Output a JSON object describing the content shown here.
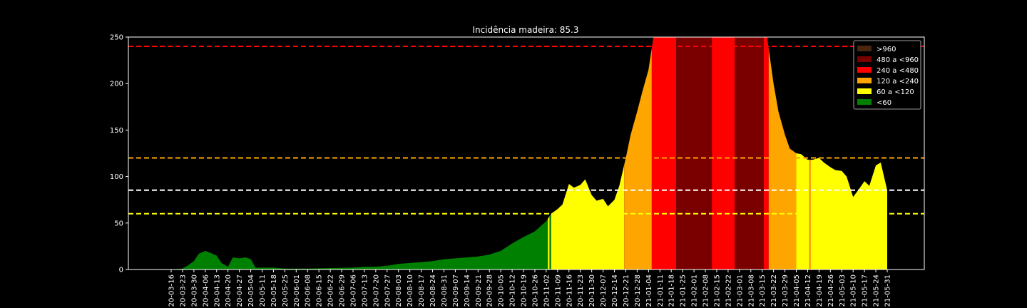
{
  "chart_data": {
    "type": "area",
    "title": "Incidência madeira: 85.3",
    "xlabel": "",
    "ylabel": "",
    "ylim": [
      0,
      250
    ],
    "y_ticks": [
      0,
      50,
      100,
      150,
      200,
      250
    ],
    "grid": false,
    "x_tick_labels": [
      "20-03-16",
      "20-03-23",
      "20-03-30",
      "20-04-06",
      "20-04-13",
      "20-04-20",
      "20-04-27",
      "20-05-04",
      "20-05-11",
      "20-05-18",
      "20-05-25",
      "20-06-01",
      "20-06-08",
      "20-06-15",
      "20-06-22",
      "20-06-29",
      "20-07-06",
      "20-07-13",
      "20-07-20",
      "20-07-27",
      "20-08-03",
      "20-08-10",
      "20-08-17",
      "20-08-24",
      "20-08-31",
      "20-09-07",
      "20-09-14",
      "20-09-21",
      "20-09-28",
      "20-10-05",
      "20-10-12",
      "20-10-19",
      "20-10-26",
      "20-11-02",
      "20-11-09",
      "20-11-16",
      "20-11-23",
      "20-11-30",
      "20-12-07",
      "20-12-14",
      "20-12-21",
      "20-12-28",
      "21-01-04",
      "21-01-11",
      "21-01-18",
      "21-01-25",
      "21-02-01",
      "21-02-08",
      "21-02-15",
      "21-02-22",
      "21-03-01",
      "21-03-08",
      "21-03-15",
      "21-03-22",
      "21-03-29",
      "21-04-05",
      "21-04-12",
      "21-04-19",
      "21-04-26",
      "21-05-03",
      "21-05-10",
      "21-05-17",
      "21-05-24",
      "21-05-31"
    ],
    "x_start": "2020-03-16",
    "incidence_series": [
      {
        "date": "2020-03-16",
        "value": 0
      },
      {
        "date": "2020-03-19",
        "value": 0.5
      },
      {
        "date": "2020-03-23",
        "value": 1
      },
      {
        "date": "2020-03-26",
        "value": 4
      },
      {
        "date": "2020-03-30",
        "value": 9
      },
      {
        "date": "2020-04-02",
        "value": 17
      },
      {
        "date": "2020-04-06",
        "value": 20
      },
      {
        "date": "2020-04-09",
        "value": 18
      },
      {
        "date": "2020-04-13",
        "value": 15
      },
      {
        "date": "2020-04-16",
        "value": 7
      },
      {
        "date": "2020-04-20",
        "value": 3
      },
      {
        "date": "2020-04-23",
        "value": 13
      },
      {
        "date": "2020-04-27",
        "value": 12
      },
      {
        "date": "2020-05-01",
        "value": 13
      },
      {
        "date": "2020-05-04",
        "value": 11
      },
      {
        "date": "2020-05-07",
        "value": 2
      },
      {
        "date": "2020-05-11",
        "value": 2
      },
      {
        "date": "2020-05-18",
        "value": 2
      },
      {
        "date": "2020-05-25",
        "value": 1
      },
      {
        "date": "2020-06-08",
        "value": 1
      },
      {
        "date": "2020-06-22",
        "value": 1.5
      },
      {
        "date": "2020-07-06",
        "value": 2
      },
      {
        "date": "2020-07-13",
        "value": 3
      },
      {
        "date": "2020-07-20",
        "value": 3
      },
      {
        "date": "2020-07-27",
        "value": 4
      },
      {
        "date": "2020-08-03",
        "value": 6
      },
      {
        "date": "2020-08-10",
        "value": 7
      },
      {
        "date": "2020-08-17",
        "value": 8
      },
      {
        "date": "2020-08-24",
        "value": 9
      },
      {
        "date": "2020-08-31",
        "value": 11
      },
      {
        "date": "2020-09-07",
        "value": 12
      },
      {
        "date": "2020-09-14",
        "value": 13
      },
      {
        "date": "2020-09-21",
        "value": 14
      },
      {
        "date": "2020-09-28",
        "value": 16
      },
      {
        "date": "2020-10-05",
        "value": 20
      },
      {
        "date": "2020-10-12",
        "value": 28
      },
      {
        "date": "2020-10-19",
        "value": 35
      },
      {
        "date": "2020-10-26",
        "value": 41
      },
      {
        "date": "2020-11-02",
        "value": 52
      },
      {
        "date": "2020-11-05",
        "value": 60
      },
      {
        "date": "2020-11-09",
        "value": 65
      },
      {
        "date": "2020-11-12",
        "value": 70
      },
      {
        "date": "2020-11-16",
        "value": 92
      },
      {
        "date": "2020-11-19",
        "value": 88
      },
      {
        "date": "2020-11-23",
        "value": 91
      },
      {
        "date": "2020-11-26",
        "value": 97
      },
      {
        "date": "2020-11-30",
        "value": 80
      },
      {
        "date": "2020-12-03",
        "value": 74
      },
      {
        "date": "2020-12-07",
        "value": 76
      },
      {
        "date": "2020-12-10",
        "value": 68
      },
      {
        "date": "2020-12-14",
        "value": 75
      },
      {
        "date": "2020-12-17",
        "value": 90
      },
      {
        "date": "2020-12-21",
        "value": 120
      },
      {
        "date": "2020-12-24",
        "value": 145
      },
      {
        "date": "2020-12-28",
        "value": 170
      },
      {
        "date": "2020-12-31",
        "value": 190
      },
      {
        "date": "2021-01-04",
        "value": 215
      },
      {
        "date": "2021-01-07",
        "value": 250
      },
      {
        "date": "2021-01-11",
        "value": 250
      },
      {
        "date": "2021-03-18",
        "value": 250
      },
      {
        "date": "2021-03-22",
        "value": 200
      },
      {
        "date": "2021-03-25",
        "value": 170
      },
      {
        "date": "2021-03-29",
        "value": 145
      },
      {
        "date": "2021-04-01",
        "value": 130
      },
      {
        "date": "2021-04-05",
        "value": 125
      },
      {
        "date": "2021-04-08",
        "value": 124
      },
      {
        "date": "2021-04-12",
        "value": 118
      },
      {
        "date": "2021-04-15",
        "value": 118
      },
      {
        "date": "2021-04-19",
        "value": 120
      },
      {
        "date": "2021-04-22",
        "value": 115
      },
      {
        "date": "2021-04-26",
        "value": 110
      },
      {
        "date": "2021-04-29",
        "value": 107
      },
      {
        "date": "2021-05-03",
        "value": 106
      },
      {
        "date": "2021-05-06",
        "value": 100
      },
      {
        "date": "2021-05-10",
        "value": 78
      },
      {
        "date": "2021-05-13",
        "value": 85
      },
      {
        "date": "2021-05-17",
        "value": 95
      },
      {
        "date": "2021-05-20",
        "value": 90
      },
      {
        "date": "2021-05-24",
        "value": 112
      },
      {
        "date": "2021-05-27",
        "value": 115
      },
      {
        "date": "2021-05-31",
        "value": 85.3
      }
    ],
    "color_bands": [
      {
        "from": "2020-03-16",
        "to": "2020-11-03",
        "color": "#008000"
      },
      {
        "from": "2020-11-03",
        "to": "2020-11-04",
        "color": "#ffff00"
      },
      {
        "from": "2020-11-04",
        "to": "2020-11-05",
        "color": "#008000"
      },
      {
        "from": "2020-11-05",
        "to": "2020-12-20",
        "color": "#ffff00"
      },
      {
        "from": "2020-12-20",
        "to": "2021-01-06",
        "color": "#ffa500"
      },
      {
        "from": "2021-01-06",
        "to": "2021-01-21",
        "color": "#ff0000"
      },
      {
        "from": "2021-01-21",
        "to": "2021-02-12",
        "color": "#7a0000"
      },
      {
        "from": "2021-02-12",
        "to": "2021-02-26",
        "color": "#ff0000"
      },
      {
        "from": "2021-02-26",
        "to": "2021-03-16",
        "color": "#7a0000"
      },
      {
        "from": "2021-03-16",
        "to": "2021-03-19",
        "color": "#ff0000"
      },
      {
        "from": "2021-03-19",
        "to": "2021-04-05",
        "color": "#ffa500"
      },
      {
        "from": "2021-04-05",
        "to": "2021-04-13",
        "color": "#ffff00"
      },
      {
        "from": "2021-04-13",
        "to": "2021-04-14",
        "color": "#ffa500"
      },
      {
        "from": "2021-04-14",
        "to": "2021-05-31",
        "color": "#ffff00"
      }
    ],
    "reference_lines": [
      {
        "value": 240,
        "color": "#ff0000"
      },
      {
        "value": 120,
        "color": "#ffa500"
      },
      {
        "value": 85.3,
        "color": "#ffffff"
      },
      {
        "value": 60,
        "color": "#ffff00"
      }
    ],
    "legend_position": "top-right",
    "legend": [
      {
        "label": ">960",
        "color": "#4a2510"
      },
      {
        "label": "480 a <960",
        "color": "#7a0000"
      },
      {
        "label": "240 a <480",
        "color": "#ff0000"
      },
      {
        "label": "120 a <240",
        "color": "#ffa500"
      },
      {
        "label": "60 a <120",
        "color": "#ffff00"
      },
      {
        "label": "<60",
        "color": "#008000"
      }
    ]
  },
  "colors": {
    "background": "#000000",
    "axis": "#ffffff",
    "text": "#ffffff"
  }
}
